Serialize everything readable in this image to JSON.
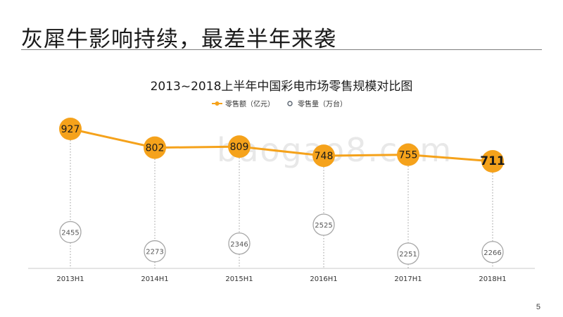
{
  "slide": {
    "title": "灰犀牛影响持续，最差半年来袭",
    "page_number": "5",
    "watermark": "baogao8.com"
  },
  "chart_data": {
    "type": "line",
    "title": "2013~2018上半年中国彩电市场零售规模对比图",
    "categories": [
      "2013H1",
      "2014H1",
      "2015H1",
      "2016H1",
      "2017H1",
      "2018H1"
    ],
    "series": [
      {
        "name": "零售额（亿元）",
        "values": [
          927,
          802,
          809,
          748,
          755,
          711
        ],
        "color": "#F5A21B",
        "style": "line-with-filled-circles"
      },
      {
        "name": "零售量（万台）",
        "values": [
          2455,
          2273,
          2346,
          2525,
          2251,
          2266
        ],
        "color": "#A6A6A6",
        "style": "hollow-circles-with-dotted-drops"
      }
    ],
    "legend": {
      "position": "top-center"
    },
    "colors": {
      "axis": "#c8c8c8",
      "text": "#333333"
    }
  }
}
